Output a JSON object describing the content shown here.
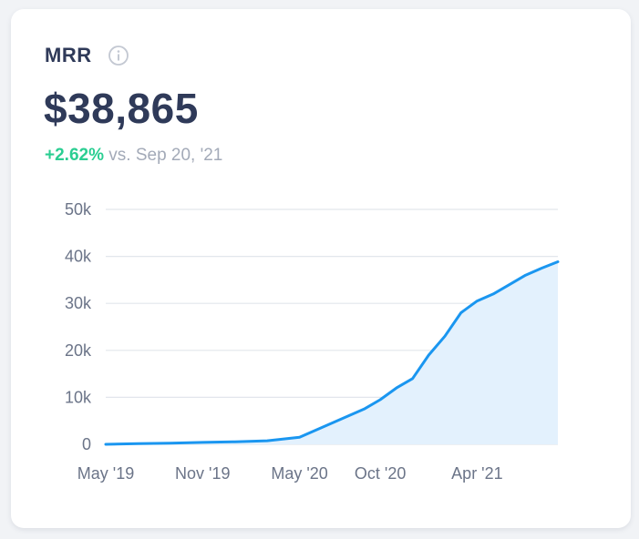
{
  "metric": {
    "name": "MRR",
    "value": "$38,865",
    "change_pct": "+2.62%",
    "change_ref": "vs. Sep 20, '21"
  },
  "icons": {
    "info": "info-circle-icon"
  },
  "colors": {
    "line": "#1a96f0",
    "area": "#e3f1fd",
    "grid": "#e2e6ec",
    "positive": "#2bce92",
    "text": "#2f3a59",
    "muted": "#6b7488"
  },
  "chart_data": {
    "type": "area",
    "y_ticks": [
      0,
      10000,
      20000,
      30000,
      40000,
      50000
    ],
    "y_tick_labels": [
      "0",
      "10k",
      "20k",
      "30k",
      "40k",
      "50k"
    ],
    "x_tick_labels": [
      "May '19",
      "Nov '19",
      "May '20",
      "Oct '20",
      "Apr '21"
    ],
    "ylim": [
      0,
      50000
    ],
    "grid": "horizontal",
    "series": [
      {
        "x": [
          "2019-05",
          "2019-07",
          "2019-09",
          "2019-11",
          "2020-01",
          "2020-03",
          "2020-05",
          "2020-06",
          "2020-07",
          "2020-08",
          "2020-09",
          "2020-10",
          "2020-11",
          "2020-12",
          "2021-01",
          "2021-02",
          "2021-03",
          "2021-04",
          "2021-05",
          "2021-06",
          "2021-07",
          "2021-08",
          "2021-09"
        ],
        "values": [
          0,
          150,
          250,
          400,
          550,
          750,
          1500,
          3000,
          4500,
          6000,
          7500,
          9500,
          12000,
          14000,
          19000,
          23000,
          28000,
          30500,
          32000,
          34000,
          36000,
          37500,
          38865
        ]
      }
    ]
  }
}
